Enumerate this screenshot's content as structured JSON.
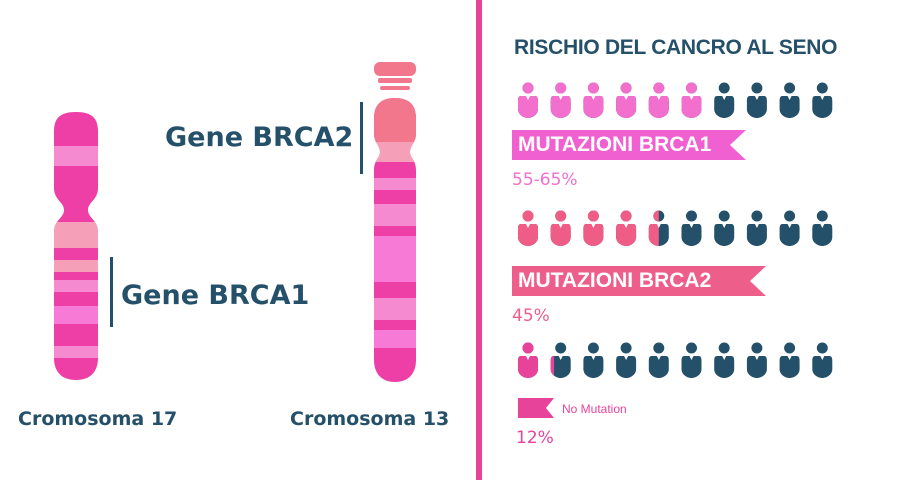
{
  "colors": {
    "navy": "#24506a",
    "magenta": "#e8439b",
    "pink_light": "#f26fcd",
    "pink_row2": "#ef5d86",
    "banner_brca1": "#f160d0",
    "banner_brca2": "#ee5e8a",
    "pct_brca1": "#f26fcd",
    "pct_brca2": "#ee5e8a",
    "pct_none": "#e8439b"
  },
  "left": {
    "gene_brca2": "Gene BRCA2",
    "gene_brca1": "Gene BRCA1",
    "chromosome_17": "Cromosoma 17",
    "chromosome_13": "Cromosoma 13"
  },
  "right": {
    "title": "RISCHIO DEL CANCRO AL SENO",
    "groups": [
      {
        "label": "MUTAZIONI BRCA1",
        "percent": "55-65%",
        "risk_fraction": 0.6
      },
      {
        "label": "MUTAZIONI BRCA2",
        "percent": "45%",
        "risk_fraction": 0.45
      },
      {
        "label": "No Mutation",
        "percent": "12%",
        "risk_fraction": 0.12
      }
    ],
    "figures_per_row": 10
  }
}
